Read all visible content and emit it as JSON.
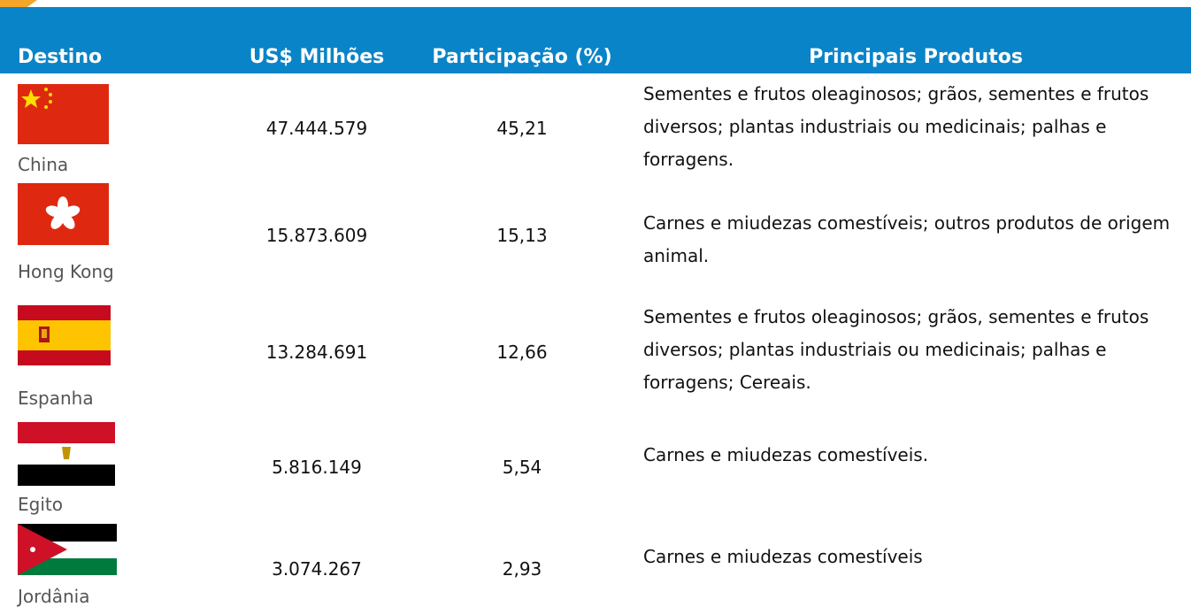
{
  "header": {
    "columns": [
      "Destino",
      "US$ Milhões",
      "Participação (%)",
      "Principais Produtos"
    ]
  },
  "table": {
    "rows": [
      [
        "China",
        "47.444.579",
        "45,21",
        "Sementes e frutos oleaginosos; grãos, sementes e frutos diversos; plantas industriais ou medicinais; palhas e forragens."
      ],
      [
        "Hong Kong",
        "15.873.609",
        "15,13",
        "Carnes e miudezas comestíveis; outros produtos de origem animal."
      ],
      [
        "Espanha",
        "13.284.691",
        "12,66",
        "Sementes e frutos oleaginosos; grãos, sementes e frutos diversos; plantas industriais ou medicinais; palhas e forragens; Cereais."
      ],
      [
        "Egito",
        "5.816.149",
        "5,54",
        "Carnes e miudezas comestíveis."
      ],
      [
        "Jordânia",
        "3.074.267",
        "2,93",
        "Carnes e miudezas comestíveis"
      ]
    ]
  }
}
